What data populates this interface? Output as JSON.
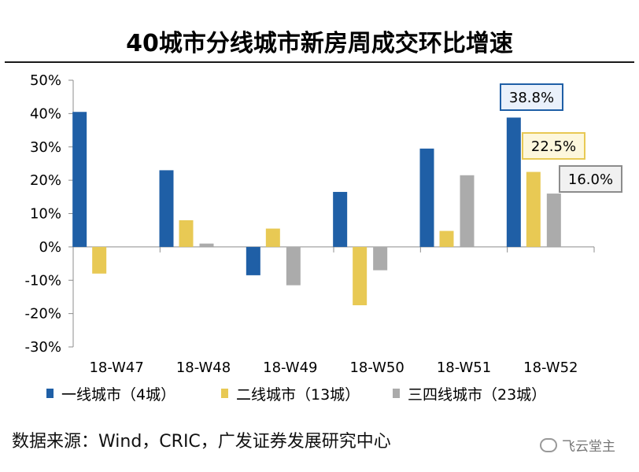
{
  "title": "40城市分线城市新房周成交环比增速",
  "source": "数据来源：Wind，CRIC，广发证券发展研究中心",
  "watermark": "飞云堂主",
  "colors": {
    "tier1": "#1f5fa6",
    "tier2": "#e8c954",
    "tier34": "#ababab"
  },
  "chart_data": {
    "type": "bar",
    "title": "40城市分线城市新房周成交环比增速",
    "categories": [
      "18-W47",
      "18-W48",
      "18-W49",
      "18-W50",
      "18-W51",
      "18-W52"
    ],
    "series": [
      {
        "name": "一线城市（4城）",
        "values": [
          40.5,
          23.0,
          -8.5,
          16.5,
          29.5,
          38.8
        ]
      },
      {
        "name": "二线城市（13城）",
        "values": [
          -8.0,
          8.0,
          5.5,
          -17.5,
          4.8,
          22.5
        ]
      },
      {
        "name": "三四线城市（23城）",
        "values": [
          null,
          1.0,
          -11.5,
          -7.0,
          21.5,
          16.0
        ]
      }
    ],
    "ylim": [
      -30,
      50
    ],
    "yticks": [
      -30,
      -20,
      -10,
      0,
      10,
      20,
      30,
      40,
      50
    ],
    "ytick_labels": [
      "-30%",
      "-20%",
      "-10%",
      "0%",
      "10%",
      "20%",
      "30%",
      "40%",
      "50%"
    ],
    "xlabel": "",
    "ylabel": "",
    "annotations": [
      {
        "series": 0,
        "category": 5,
        "text": "38.8%"
      },
      {
        "series": 1,
        "category": 5,
        "text": "22.5%"
      },
      {
        "series": 2,
        "category": 5,
        "text": "16.0%"
      }
    ],
    "legend_position": "bottom"
  }
}
